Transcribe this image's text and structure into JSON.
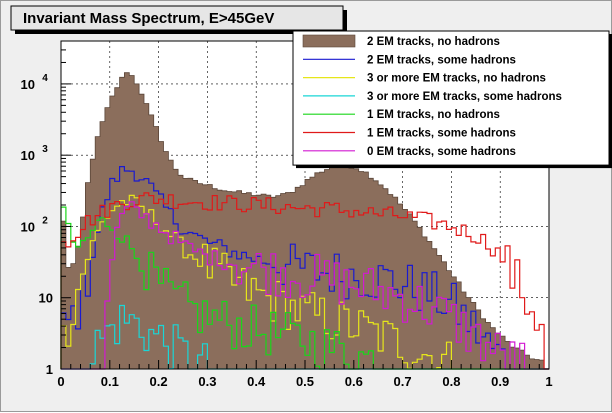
{
  "chart_data": {
    "type": "histogram",
    "title": "Invariant Mass Spectrum, E>45GeV",
    "xlabel": "",
    "ylabel": "",
    "xlim": [
      0,
      1
    ],
    "ylim": [
      1,
      40000
    ],
    "yscale": "log",
    "grid": true,
    "legend_position": "top-right",
    "bin_width": 0.01,
    "x_ticks": [
      "0",
      "0.1",
      "0.2",
      "0.3",
      "0.4",
      "0.5",
      "0.6",
      "0.7",
      "0.8",
      "0.9",
      "1"
    ],
    "y_ticks": [
      {
        "value": 1,
        "base": "1",
        "exp": ""
      },
      {
        "value": 10,
        "base": "10",
        "exp": ""
      },
      {
        "value": 100,
        "base": "10",
        "exp": "2"
      },
      {
        "value": 1000,
        "base": "10",
        "exp": "3"
      },
      {
        "value": 10000,
        "base": "10",
        "exp": "4"
      }
    ],
    "series": [
      {
        "name": "2 EM tracks, no hadrons",
        "color": "#8b6e5c",
        "style": "filled",
        "anchors": [
          [
            0.0,
            450
          ],
          [
            0.01,
            30
          ],
          [
            0.02,
            25
          ],
          [
            0.03,
            35
          ],
          [
            0.04,
            70
          ],
          [
            0.05,
            250
          ],
          [
            0.06,
            650
          ],
          [
            0.07,
            1300
          ],
          [
            0.08,
            2300
          ],
          [
            0.09,
            3600
          ],
          [
            0.1,
            5500
          ],
          [
            0.11,
            7800
          ],
          [
            0.12,
            10500
          ],
          [
            0.13,
            13500
          ],
          [
            0.135,
            15000
          ],
          [
            0.14,
            14000
          ],
          [
            0.15,
            12000
          ],
          [
            0.16,
            9000
          ],
          [
            0.17,
            6200
          ],
          [
            0.18,
            4200
          ],
          [
            0.19,
            2900
          ],
          [
            0.2,
            2000
          ],
          [
            0.21,
            1350
          ],
          [
            0.22,
            950
          ],
          [
            0.23,
            720
          ],
          [
            0.24,
            580
          ],
          [
            0.25,
            500
          ],
          [
            0.27,
            430
          ],
          [
            0.3,
            380
          ],
          [
            0.33,
            330
          ],
          [
            0.36,
            300
          ],
          [
            0.4,
            280
          ],
          [
            0.43,
            260
          ],
          [
            0.46,
            280
          ],
          [
            0.48,
            330
          ],
          [
            0.5,
            420
          ],
          [
            0.52,
            530
          ],
          [
            0.54,
            620
          ],
          [
            0.56,
            700
          ],
          [
            0.58,
            720
          ],
          [
            0.6,
            690
          ],
          [
            0.62,
            600
          ],
          [
            0.64,
            480
          ],
          [
            0.66,
            370
          ],
          [
            0.68,
            270
          ],
          [
            0.7,
            190
          ],
          [
            0.72,
            130
          ],
          [
            0.74,
            85
          ],
          [
            0.76,
            55
          ],
          [
            0.78,
            35
          ],
          [
            0.8,
            22
          ],
          [
            0.82,
            14
          ],
          [
            0.84,
            9
          ],
          [
            0.86,
            6
          ],
          [
            0.88,
            4
          ],
          [
            0.9,
            3
          ],
          [
            0.92,
            2.2
          ],
          [
            0.94,
            1.8
          ],
          [
            0.96,
            1.5
          ],
          [
            0.98,
            1.3
          ]
        ]
      },
      {
        "name": "2 EM tracks, some hadrons",
        "color": "#1a1ad0",
        "style": "line",
        "anchors": [
          [
            0.0,
            3
          ],
          [
            0.02,
            5
          ],
          [
            0.04,
            8
          ],
          [
            0.05,
            14
          ],
          [
            0.06,
            30
          ],
          [
            0.07,
            60
          ],
          [
            0.08,
            120
          ],
          [
            0.09,
            210
          ],
          [
            0.1,
            330
          ],
          [
            0.11,
            450
          ],
          [
            0.12,
            550
          ],
          [
            0.13,
            620
          ],
          [
            0.14,
            640
          ],
          [
            0.15,
            600
          ],
          [
            0.16,
            540
          ],
          [
            0.17,
            460
          ],
          [
            0.18,
            380
          ],
          [
            0.19,
            300
          ],
          [
            0.2,
            240
          ],
          [
            0.22,
            160
          ],
          [
            0.24,
            110
          ],
          [
            0.26,
            85
          ],
          [
            0.28,
            70
          ],
          [
            0.3,
            60
          ],
          [
            0.33,
            50
          ],
          [
            0.36,
            42
          ],
          [
            0.4,
            35
          ],
          [
            0.44,
            30
          ],
          [
            0.48,
            26
          ],
          [
            0.52,
            24
          ],
          [
            0.56,
            22
          ],
          [
            0.6,
            21
          ],
          [
            0.64,
            19
          ],
          [
            0.68,
            17
          ],
          [
            0.72,
            14
          ],
          [
            0.76,
            11
          ],
          [
            0.8,
            8
          ],
          [
            0.83,
            5
          ],
          [
            0.86,
            3
          ],
          [
            0.88,
            2
          ],
          [
            0.9,
            1.5
          ],
          [
            0.92,
            1.2
          ]
        ]
      },
      {
        "name": "3 or more EM tracks, no hadrons",
        "color": "#e6e61a",
        "style": "line",
        "anchors": [
          [
            0.0,
            2
          ],
          [
            0.03,
            10
          ],
          [
            0.05,
            30
          ],
          [
            0.07,
            70
          ],
          [
            0.09,
            130
          ],
          [
            0.11,
            190
          ],
          [
            0.13,
            230
          ],
          [
            0.15,
            210
          ],
          [
            0.17,
            170
          ],
          [
            0.19,
            130
          ],
          [
            0.21,
            100
          ],
          [
            0.23,
            70
          ],
          [
            0.25,
            50
          ],
          [
            0.28,
            35
          ],
          [
            0.31,
            25
          ],
          [
            0.34,
            18
          ],
          [
            0.38,
            13
          ],
          [
            0.42,
            10
          ],
          [
            0.46,
            8
          ],
          [
            0.5,
            6
          ],
          [
            0.55,
            5
          ],
          [
            0.6,
            4
          ],
          [
            0.65,
            3
          ],
          [
            0.7,
            2.2
          ],
          [
            0.75,
            1.6
          ],
          [
            0.8,
            1.2
          ]
        ]
      },
      {
        "name": "3 or more EM tracks, some hadrons",
        "color": "#1ad6d6",
        "style": "line",
        "anchors": [
          [
            0.05,
            1.2
          ],
          [
            0.07,
            2
          ],
          [
            0.09,
            3
          ],
          [
            0.11,
            4
          ],
          [
            0.13,
            5
          ],
          [
            0.15,
            4.5
          ],
          [
            0.17,
            3.5
          ],
          [
            0.19,
            3
          ],
          [
            0.21,
            2.5
          ],
          [
            0.23,
            2
          ],
          [
            0.25,
            1.6
          ],
          [
            0.27,
            1.3
          ],
          [
            0.3,
            1.1
          ]
        ]
      },
      {
        "name": "1 EM tracks, no hadrons",
        "color": "#1ad61a",
        "style": "line",
        "anchors": [
          [
            0.0,
            300
          ],
          [
            0.01,
            120
          ],
          [
            0.02,
            60
          ],
          [
            0.03,
            50
          ],
          [
            0.05,
            60
          ],
          [
            0.07,
            100
          ],
          [
            0.08,
            120
          ],
          [
            0.1,
            110
          ],
          [
            0.12,
            80
          ],
          [
            0.14,
            55
          ],
          [
            0.16,
            35
          ],
          [
            0.18,
            22
          ],
          [
            0.2,
            15
          ],
          [
            0.22,
            11
          ],
          [
            0.25,
            8
          ],
          [
            0.28,
            6
          ],
          [
            0.32,
            5
          ],
          [
            0.36,
            4
          ],
          [
            0.4,
            3.5
          ],
          [
            0.45,
            3
          ],
          [
            0.5,
            2.5
          ],
          [
            0.55,
            2
          ],
          [
            0.6,
            1.6
          ],
          [
            0.65,
            1.3
          ]
        ]
      },
      {
        "name": "1 EM tracks, some hadrons",
        "color": "#e01a1a",
        "style": "line",
        "anchors": [
          [
            0.0,
            80
          ],
          [
            0.01,
            60
          ],
          [
            0.02,
            70
          ],
          [
            0.03,
            80
          ],
          [
            0.04,
            95
          ],
          [
            0.05,
            110
          ],
          [
            0.06,
            125
          ],
          [
            0.08,
            150
          ],
          [
            0.1,
            180
          ],
          [
            0.12,
            210
          ],
          [
            0.14,
            230
          ],
          [
            0.16,
            240
          ],
          [
            0.18,
            250
          ],
          [
            0.2,
            245
          ],
          [
            0.22,
            240
          ],
          [
            0.25,
            230
          ],
          [
            0.3,
            220
          ],
          [
            0.35,
            210
          ],
          [
            0.4,
            200
          ],
          [
            0.45,
            190
          ],
          [
            0.5,
            180
          ],
          [
            0.55,
            175
          ],
          [
            0.6,
            165
          ],
          [
            0.65,
            150
          ],
          [
            0.7,
            140
          ],
          [
            0.75,
            120
          ],
          [
            0.8,
            100
          ],
          [
            0.85,
            75
          ],
          [
            0.88,
            55
          ],
          [
            0.9,
            40
          ],
          [
            0.92,
            25
          ],
          [
            0.94,
            14
          ],
          [
            0.96,
            8
          ],
          [
            0.98,
            5
          ]
        ]
      },
      {
        "name": "0 EM tracks, some hadrons",
        "color": "#d21ad2",
        "style": "line",
        "anchors": [
          [
            0.09,
            2
          ],
          [
            0.1,
            20
          ],
          [
            0.11,
            60
          ],
          [
            0.12,
            120
          ],
          [
            0.13,
            160
          ],
          [
            0.14,
            180
          ],
          [
            0.15,
            170
          ],
          [
            0.17,
            140
          ],
          [
            0.2,
            100
          ],
          [
            0.23,
            70
          ],
          [
            0.26,
            50
          ],
          [
            0.3,
            38
          ],
          [
            0.34,
            32
          ],
          [
            0.38,
            28
          ],
          [
            0.42,
            25
          ],
          [
            0.46,
            22
          ],
          [
            0.5,
            20
          ],
          [
            0.54,
            18
          ],
          [
            0.58,
            16
          ],
          [
            0.62,
            14
          ],
          [
            0.66,
            12
          ],
          [
            0.7,
            10
          ],
          [
            0.74,
            8
          ],
          [
            0.78,
            6
          ],
          [
            0.82,
            4
          ],
          [
            0.86,
            2.5
          ],
          [
            0.9,
            1.6
          ],
          [
            0.94,
            1.2
          ]
        ]
      }
    ]
  }
}
